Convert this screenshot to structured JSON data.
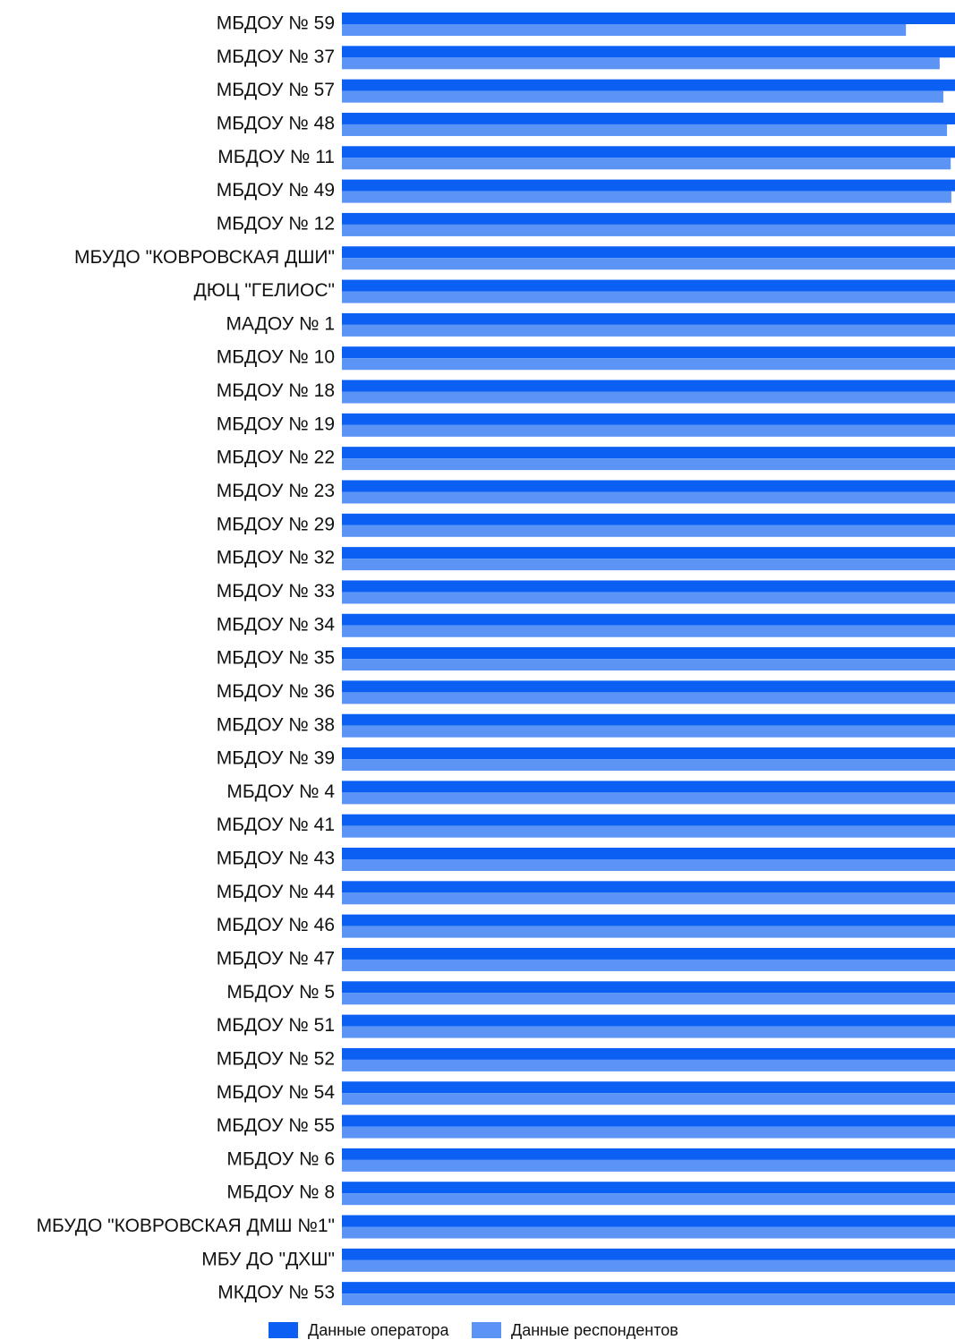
{
  "chart_data": {
    "type": "barh",
    "categories": [
      "МБДОУ № 59",
      "МБДОУ № 37",
      "МБДОУ № 57",
      "МБДОУ № 48",
      "МБДОУ № 11",
      "МБДОУ № 49",
      "МБДОУ № 12",
      "МБУДО \"КОВРОВСКАЯ ДШИ\"",
      "ДЮЦ \"ГЕЛИОС\"",
      "МАДОУ № 1",
      "МБДОУ № 10",
      "МБДОУ № 18",
      "МБДОУ № 19",
      "МБДОУ № 22",
      "МБДОУ № 23",
      "МБДОУ № 29",
      "МБДОУ № 32",
      "МБДОУ № 33",
      "МБДОУ № 34",
      "МБДОУ № 35",
      "МБДОУ № 36",
      "МБДОУ № 38",
      "МБДОУ № 39",
      "МБДОУ № 4",
      "МБДОУ № 41",
      "МБДОУ № 43",
      "МБДОУ № 44",
      "МБДОУ № 46",
      "МБДОУ № 47",
      "МБДОУ № 5",
      "МБДОУ № 51",
      "МБДОУ № 52",
      "МБДОУ № 54",
      "МБДОУ № 55",
      "МБДОУ № 6",
      "МБДОУ № 8",
      "МБУДО \"КОВРОВСКАЯ ДМШ №1\"",
      "МБУ ДО \"ДХШ\"",
      "МКДОУ № 53"
    ],
    "series": [
      {
        "name": "Данные оператора",
        "color": "#0b5ff2",
        "values": [
          100,
          100,
          100,
          100,
          100,
          100,
          100,
          100,
          100,
          100,
          100,
          100,
          100,
          100,
          100,
          100,
          100,
          100,
          100,
          100,
          100,
          100,
          100,
          100,
          100,
          100,
          100,
          100,
          100,
          100,
          100,
          100,
          100,
          100,
          100,
          100,
          100,
          100,
          100
        ]
      },
      {
        "name": "Данные респондентов",
        "color": "#5c94f6",
        "values": [
          92,
          97.5,
          98.1,
          98.7,
          99.3,
          99.4,
          100,
          100,
          100,
          100,
          100,
          100,
          100,
          100,
          100,
          100,
          100,
          100,
          100,
          100,
          100,
          100,
          100,
          100,
          100,
          100,
          100,
          100,
          100,
          100,
          100,
          100,
          100,
          100,
          100,
          100,
          100,
          100,
          100
        ]
      }
    ],
    "xlim": [
      0,
      100
    ],
    "legend": "bottom"
  }
}
